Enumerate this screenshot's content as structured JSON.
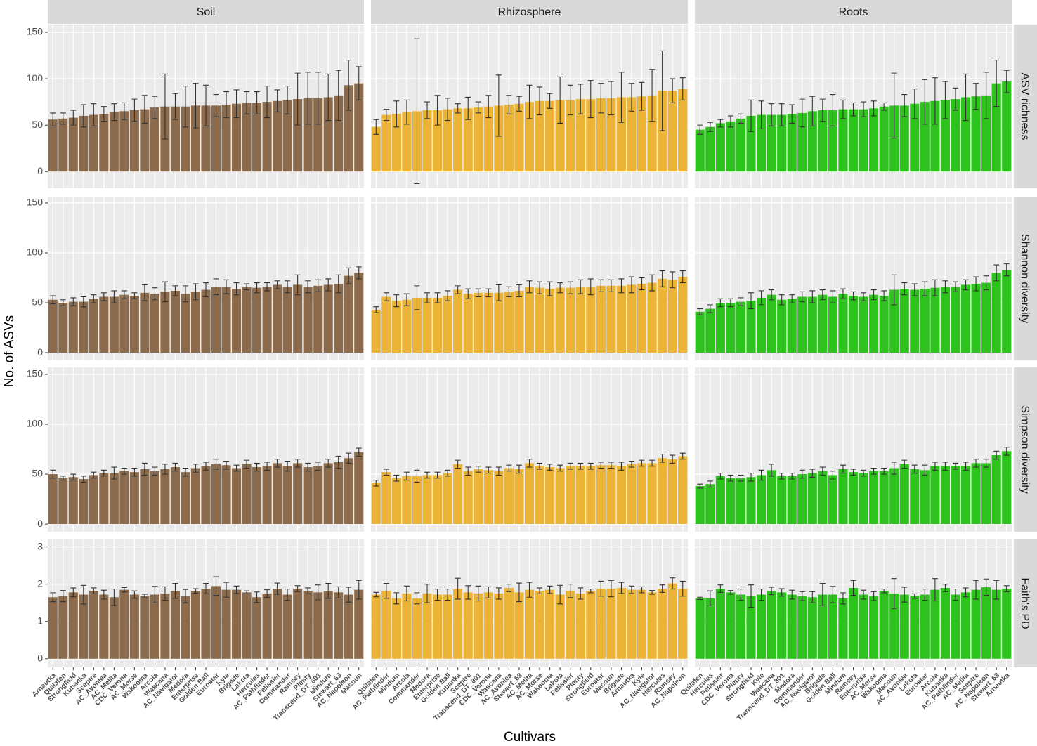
{
  "chart_data": {
    "type": "bar",
    "x_label": "Cultivars",
    "y_label": "No. of ASVs",
    "columns": [
      {
        "name": "Soil",
        "color": "#8b6b4b",
        "categories": [
          "Arnautka",
          "Quilafen",
          "Strongfield",
          "Kubanka",
          "Sceptre",
          "AC_Avonlea",
          "AC_Melita",
          "CDC_Verona",
          "AC_Morse",
          "Wakooma",
          "Arcola",
          "Wascana",
          "AC_Navigator",
          "Medora",
          "Enterprise",
          "Golden Ball",
          "Eurostar",
          "Kyle",
          "Brigade",
          "Lakota",
          "Hercules",
          "AC_Pathfinder",
          "Pelissier",
          "Commander",
          "Ramsey",
          "Plenty",
          "Transcend_DT_801",
          "Mindum",
          "Stewart_63",
          "AC_Napoleon",
          "Macoun"
        ]
      },
      {
        "name": "Rhizosphere",
        "color": "#ebb437",
        "categories": [
          "Quilafen",
          "AC_Pathfinder",
          "Mindum",
          "Arcola",
          "Commander",
          "Medora",
          "Enterprise",
          "Golden Ball",
          "Kubanka",
          "Sceptre",
          "Transcend_DT_801",
          "CDC_Verona",
          "Wascana",
          "AC_Avonlea",
          "Stewart_63",
          "AC_Melita",
          "AC_Morse",
          "Wakooma",
          "Lakota",
          "Pelissier",
          "Plenty",
          "Strongfield",
          "Eurostar",
          "Macoun",
          "Brigade",
          "Arnautka",
          "Kyle",
          "AC_Navigator",
          "Hercules",
          "Ramsey",
          "AC_Napoleon"
        ]
      },
      {
        "name": "Roots",
        "color": "#2dc31c",
        "categories": [
          "Quilafen",
          "Hercules",
          "Pelissier",
          "CDC_Verona",
          "Plenty",
          "Strongfield",
          "Kyle",
          "Wascana",
          "Transcend_DT_801",
          "Medora",
          "Commander",
          "AC_Navigator",
          "Brigade",
          "Golden Ball",
          "Mindum",
          "Ramsey",
          "Enterprise",
          "AC_Morse",
          "Wakooma",
          "Macoun",
          "AC_Avonlea",
          "Lakota",
          "Eurostar",
          "Arcola",
          "Kubanka",
          "AC_Pathfinder",
          "AC_Melita",
          "Sceptre",
          "AC_Napoleon",
          "Stewart_63",
          "Arnautka"
        ]
      }
    ],
    "rows": [
      {
        "name": "ASV richness",
        "ylim": [
          -18,
          158.3
        ],
        "yticks": [
          0,
          50,
          100,
          150
        ],
        "panels": [
          {
            "values": [
              56,
              57,
              58,
              60,
              61,
              62,
              64,
              65,
              66,
              67,
              69,
              70,
              70,
              70,
              71,
              71,
              71,
              72,
              73,
              74,
              74,
              75,
              76,
              77,
              78,
              79,
              79,
              80,
              82,
              93,
              95
            ],
            "errors": [
              7,
              6,
              8,
              12,
              12,
              8,
              9,
              9,
              12,
              15,
              12,
              35,
              14,
              22,
              24,
              22,
              12,
              14,
              15,
              12,
              12,
              17,
              12,
              15,
              28,
              28,
              28,
              25,
              27,
              27,
              18
            ]
          },
          {
            "values": [
              48,
              61,
              62,
              64,
              65,
              66,
              66,
              67,
              68,
              68,
              69,
              70,
              71,
              72,
              73,
              75,
              76,
              76,
              77,
              77,
              78,
              78,
              79,
              79,
              80,
              80,
              81,
              82,
              87,
              87,
              89
            ],
            "errors": [
              8,
              6,
              14,
              13,
              78,
              9,
              16,
              12,
              5,
              12,
              6,
              12,
              33,
              10,
              8,
              18,
              15,
              8,
              25,
              16,
              16,
              20,
              16,
              18,
              27,
              15,
              15,
              28,
              43,
              13,
              12
            ]
          },
          {
            "values": [
              45,
              48,
              52,
              54,
              57,
              60,
              61,
              61,
              61,
              62,
              63,
              65,
              66,
              66,
              67,
              67,
              67,
              68,
              70,
              71,
              71,
              73,
              75,
              76,
              77,
              78,
              80,
              81,
              82,
              95,
              97
            ],
            "errors": [
              5,
              5,
              4,
              6,
              5,
              17,
              15,
              12,
              12,
              10,
              15,
              16,
              12,
              17,
              10,
              7,
              8,
              8,
              4,
              35,
              12,
              16,
              24,
              25,
              20,
              12,
              25,
              14,
              25,
              25,
              12
            ]
          }
        ]
      },
      {
        "name": "Shannon diversity",
        "ylim": [
          -7.7,
          156.3
        ],
        "yticks": [
          0,
          50,
          100,
          150
        ],
        "panels": [
          {
            "values": [
              53,
              50,
              51,
              51,
              54,
              56,
              56,
              58,
              57,
              60,
              59,
              61,
              62,
              59,
              61,
              63,
              66,
              66,
              64,
              66,
              65,
              66,
              68,
              66,
              68,
              66,
              67,
              68,
              69,
              77,
              80
            ],
            "errors": [
              4,
              3,
              4,
              5,
              4,
              4,
              6,
              4,
              3,
              8,
              6,
              10,
              5,
              8,
              8,
              7,
              8,
              7,
              6,
              3,
              5,
              4,
              4,
              6,
              10,
              6,
              6,
              6,
              9,
              8,
              6
            ]
          },
          {
            "values": [
              43,
              56,
              52,
              53,
              55,
              55,
              55,
              57,
              63,
              59,
              60,
              60,
              60,
              61,
              62,
              66,
              65,
              64,
              65,
              65,
              66,
              66,
              67,
              67,
              67,
              68,
              69,
              70,
              74,
              73,
              76
            ],
            "errors": [
              3,
              4,
              6,
              6,
              12,
              5,
              5,
              5,
              4,
              5,
              4,
              4,
              8,
              5,
              6,
              6,
              6,
              7,
              5,
              6,
              7,
              8,
              6,
              6,
              7,
              8,
              6,
              8,
              8,
              8,
              6
            ]
          },
          {
            "values": [
              41,
              44,
              50,
              50,
              51,
              52,
              55,
              58,
              53,
              54,
              56,
              56,
              58,
              56,
              59,
              57,
              56,
              58,
              57,
              63,
              64,
              63,
              64,
              65,
              66,
              66,
              68,
              69,
              70,
              80,
              83
            ],
            "errors": [
              3,
              4,
              4,
              4,
              4,
              8,
              7,
              5,
              5,
              4,
              5,
              6,
              5,
              6,
              5,
              4,
              4,
              5,
              5,
              15,
              6,
              6,
              7,
              8,
              6,
              5,
              5,
              7,
              7,
              8,
              6
            ]
          }
        ]
      },
      {
        "name": "Simpson diversity",
        "ylim": [
          -7.7,
          157
        ],
        "yticks": [
          0,
          50,
          100,
          150
        ],
        "panels": [
          {
            "values": [
              50,
              46,
              47,
              45,
              49,
              51,
              51,
              53,
              52,
              55,
              53,
              55,
              57,
              52,
              56,
              58,
              60,
              59,
              56,
              60,
              57,
              58,
              61,
              58,
              61,
              57,
              58,
              61,
              62,
              66,
              72
            ],
            "errors": [
              4,
              2,
              3,
              3,
              3,
              3,
              6,
              3,
              4,
              6,
              4,
              5,
              4,
              4,
              4,
              4,
              5,
              4,
              3,
              4,
              4,
              4,
              4,
              5,
              4,
              4,
              4,
              4,
              6,
              5,
              4
            ]
          },
          {
            "values": [
              41,
              52,
              46,
              48,
              48,
              49,
              49,
              51,
              60,
              53,
              55,
              54,
              53,
              56,
              55,
              61,
              58,
              57,
              56,
              58,
              58,
              58,
              59,
              59,
              58,
              60,
              61,
              61,
              66,
              65,
              68
            ],
            "errors": [
              3,
              3,
              3,
              4,
              6,
              3,
              3,
              3,
              4,
              4,
              3,
              3,
              4,
              3,
              4,
              4,
              3,
              3,
              3,
              3,
              3,
              3,
              3,
              3,
              4,
              3,
              3,
              3,
              4,
              4,
              3
            ]
          },
          {
            "values": [
              38,
              40,
              48,
              46,
              46,
              47,
              49,
              54,
              48,
              48,
              50,
              51,
              53,
              49,
              55,
              52,
              51,
              53,
              53,
              56,
              60,
              55,
              54,
              58,
              58,
              58,
              58,
              61,
              61,
              69,
              73
            ],
            "errors": [
              2,
              3,
              3,
              3,
              3,
              4,
              5,
              6,
              3,
              3,
              4,
              4,
              4,
              4,
              4,
              3,
              3,
              3,
              3,
              6,
              4,
              4,
              5,
              4,
              4,
              3,
              4,
              4,
              4,
              4,
              4
            ]
          }
        ]
      },
      {
        "name": "Faith's PD",
        "ylim": [
          -0.23,
          3.2
        ],
        "yticks": [
          0,
          1,
          2,
          3
        ],
        "panels": [
          {
            "values": [
              1.65,
              1.68,
              1.78,
              1.72,
              1.82,
              1.72,
              1.65,
              1.85,
              1.72,
              1.68,
              1.72,
              1.75,
              1.82,
              1.68,
              1.82,
              1.88,
              1.95,
              1.85,
              1.85,
              1.78,
              1.65,
              1.75,
              1.88,
              1.72,
              1.88,
              1.82,
              1.78,
              1.82,
              1.78,
              1.72,
              1.85
            ],
            "errors": [
              0.12,
              0.15,
              0.12,
              0.25,
              0.08,
              0.12,
              0.22,
              0.06,
              0.1,
              0.05,
              0.22,
              0.18,
              0.2,
              0.18,
              0.06,
              0.14,
              0.25,
              0.2,
              0.1,
              0.04,
              0.14,
              0.1,
              0.15,
              0.15,
              0.08,
              0.08,
              0.2,
              0.2,
              0.15,
              0.2,
              0.25
            ]
          },
          {
            "values": [
              1.72,
              1.82,
              1.62,
              1.75,
              1.62,
              1.75,
              1.72,
              1.72,
              1.88,
              1.78,
              1.75,
              1.78,
              1.75,
              1.9,
              1.78,
              1.85,
              1.82,
              1.85,
              1.72,
              1.82,
              1.75,
              1.82,
              1.88,
              1.88,
              1.9,
              1.85,
              1.85,
              1.78,
              1.88,
              2.02,
              1.88
            ],
            "errors": [
              0.06,
              0.2,
              0.15,
              0.2,
              0.15,
              0.25,
              0.15,
              0.15,
              0.28,
              0.18,
              0.2,
              0.15,
              0.15,
              0.1,
              0.25,
              0.2,
              0.08,
              0.1,
              0.25,
              0.18,
              0.15,
              0.05,
              0.2,
              0.22,
              0.15,
              0.1,
              0.08,
              0.05,
              0.1,
              0.15,
              0.2
            ]
          },
          {
            "values": [
              1.62,
              1.62,
              1.88,
              1.78,
              1.72,
              1.68,
              1.72,
              1.82,
              1.78,
              1.72,
              1.68,
              1.65,
              1.72,
              1.72,
              1.62,
              1.9,
              1.72,
              1.68,
              1.82,
              1.75,
              1.72,
              1.68,
              1.72,
              1.85,
              1.9,
              1.72,
              1.78,
              1.85,
              1.92,
              1.85,
              1.88
            ],
            "errors": [
              0.03,
              0.2,
              0.1,
              0.05,
              0.15,
              0.3,
              0.15,
              0.1,
              0.1,
              0.12,
              0.12,
              0.15,
              0.3,
              0.22,
              0.15,
              0.2,
              0.12,
              0.12,
              0.05,
              0.4,
              0.2,
              0.06,
              0.15,
              0.3,
              0.1,
              0.15,
              0.12,
              0.25,
              0.22,
              0.25,
              0.08
            ]
          }
        ]
      }
    ]
  }
}
